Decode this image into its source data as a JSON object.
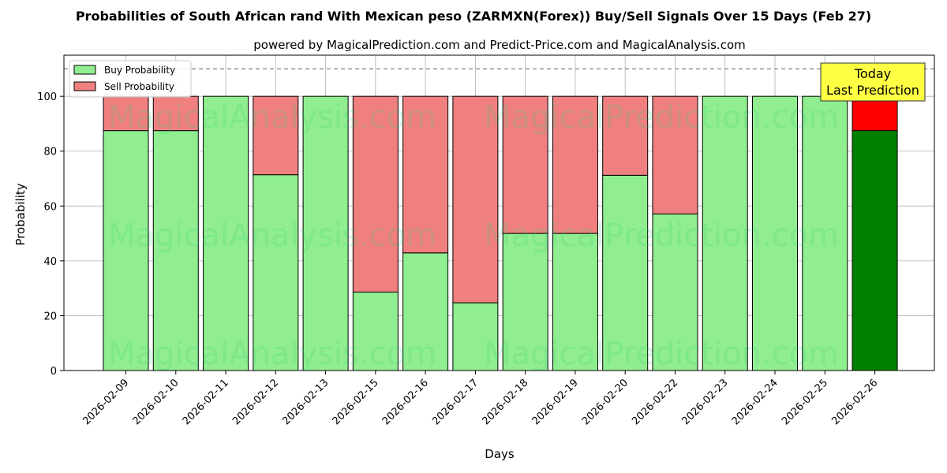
{
  "chart_data": {
    "type": "bar",
    "stacked": true,
    "title": "Probabilities of South African rand With Mexican peso (ZARMXN(Forex)) Buy/Sell Signals Over 15 Days (Feb 27)",
    "subtitle": "powered by MagicalPrediction.com and Predict-Price.com and MagicalAnalysis.com",
    "xlabel": "Days",
    "ylabel": "Probability",
    "ylim": [
      0,
      115
    ],
    "yticks": [
      0,
      20,
      40,
      60,
      80,
      100
    ],
    "grid": true,
    "legend_position": "top-left",
    "reference_line": 110,
    "categories": [
      "2026-02-09",
      "2026-02-10",
      "2026-02-11",
      "2026-02-12",
      "2026-02-13",
      "2026-02-15",
      "2026-02-16",
      "2026-02-17",
      "2026-02-18",
      "2026-02-19",
      "2026-02-20",
      "2026-02-22",
      "2026-02-23",
      "2026-02-24",
      "2026-02-25",
      "2026-02-26"
    ],
    "series": [
      {
        "name": "Buy Probability",
        "color": "#90ee90",
        "values": [
          87.5,
          87.5,
          100,
          71.4,
          100,
          28.6,
          42.9,
          24.7,
          50,
          50,
          71.2,
          57.1,
          100,
          100,
          100,
          87.5
        ]
      },
      {
        "name": "Sell Probability",
        "color": "#f08080",
        "values": [
          12.5,
          12.5,
          0,
          28.6,
          0,
          71.4,
          57.1,
          75.3,
          50,
          50,
          28.8,
          42.9,
          0,
          0,
          0,
          12.5
        ]
      }
    ],
    "highlight": {
      "index": 15,
      "buy_color": "#008000",
      "sell_color": "#ff0000",
      "label_line1": "Today",
      "label_line2": "Last Prediction",
      "label_color": "#ffff44"
    },
    "watermarks": [
      "MagicalAnalysis.com",
      "MagicalPrediction.com"
    ]
  }
}
